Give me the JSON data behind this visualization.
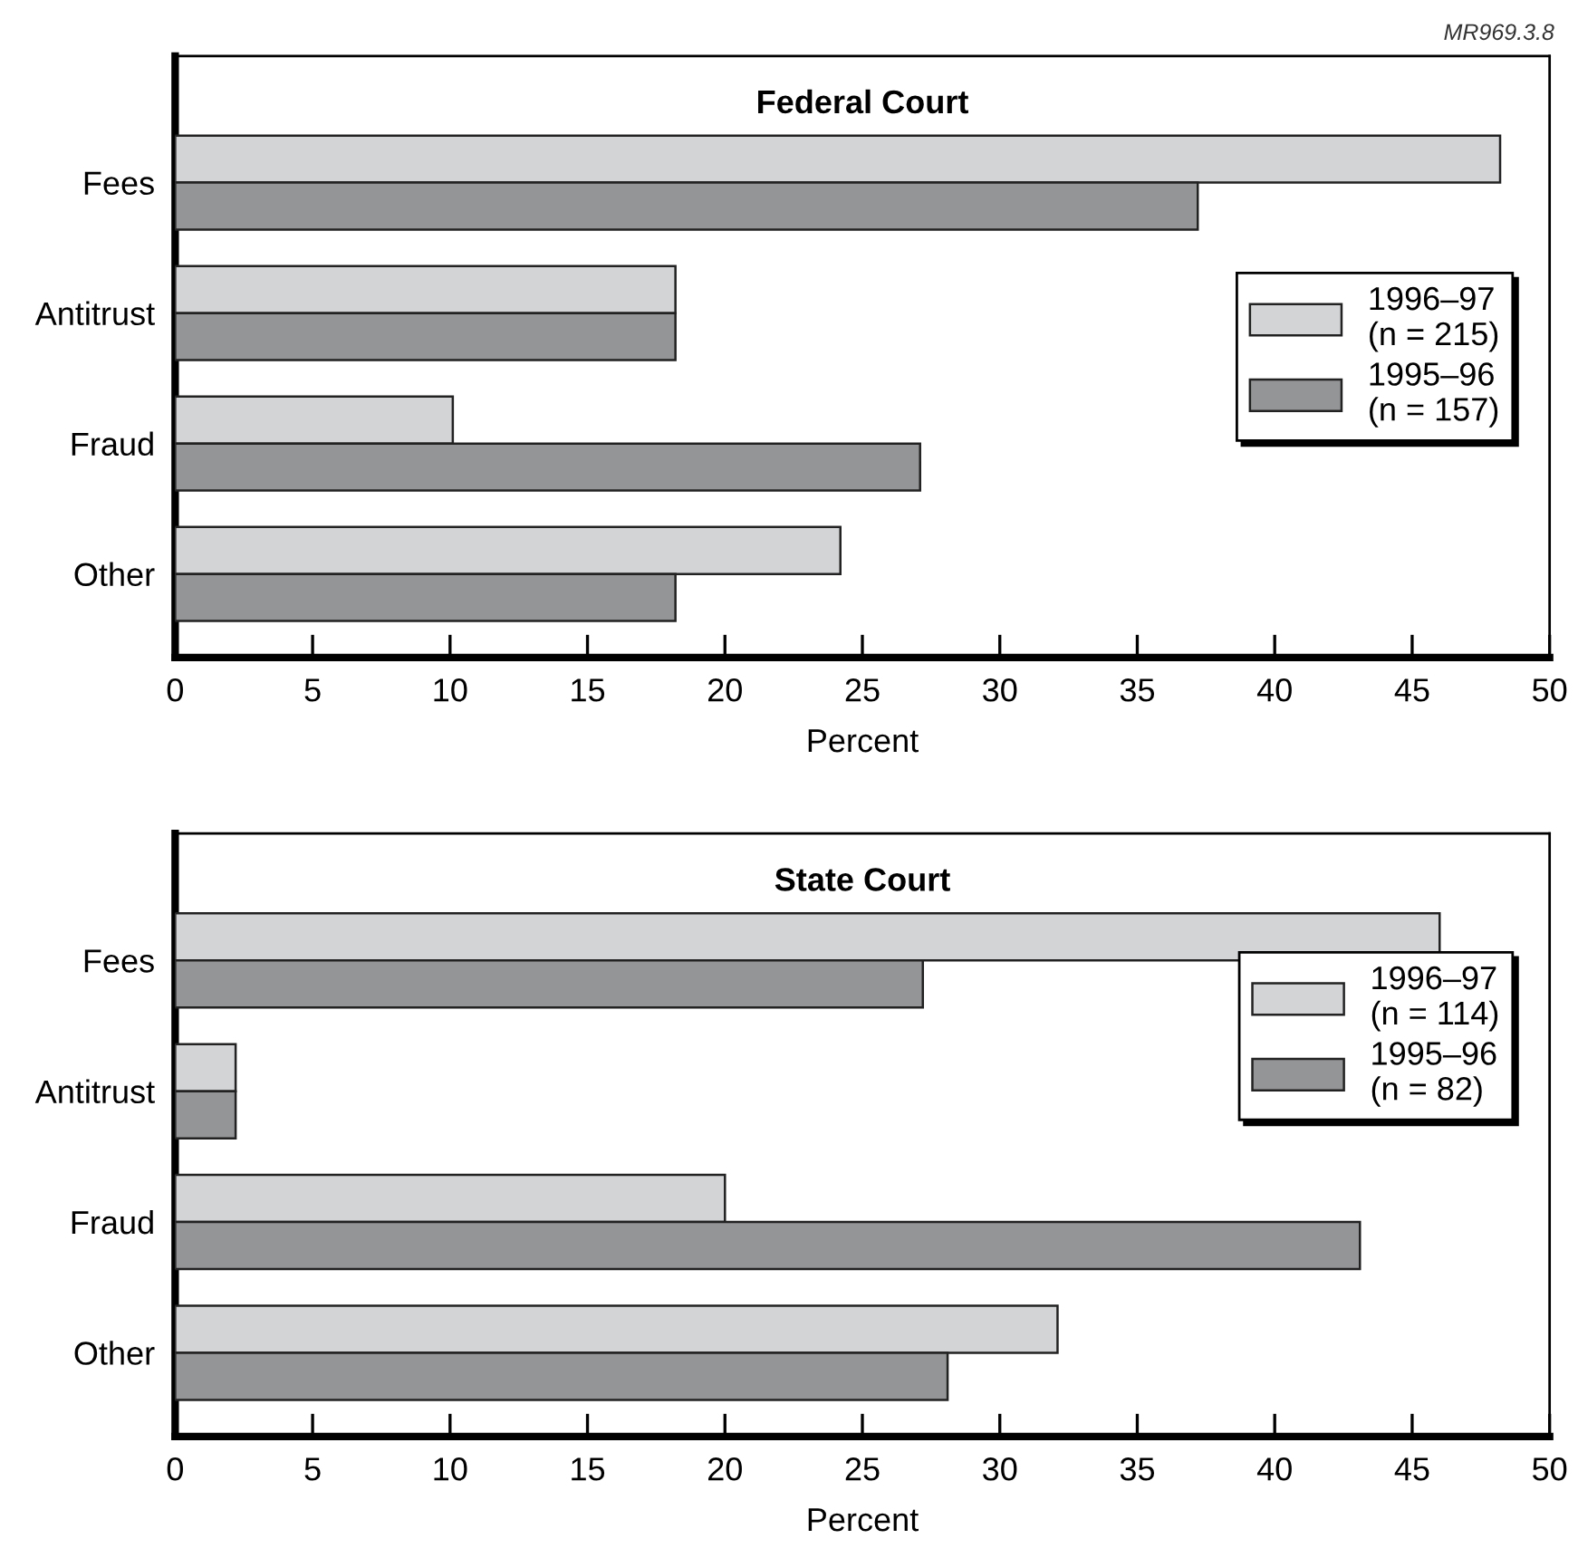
{
  "chart_data": [
    {
      "type": "bar",
      "orientation": "horizontal",
      "title": "Federal Court",
      "xlabel": "Percent",
      "categories": [
        "Fees",
        "Antitrust",
        "Fraud",
        "Other"
      ],
      "series": [
        {
          "name": "1996–97\n(n = 215)",
          "color": "#d3d4d6",
          "values": [
            48.2,
            18.2,
            10.1,
            24.2
          ]
        },
        {
          "name": "1995–96\n(n = 157)",
          "color": "#949597",
          "values": [
            37.2,
            18.2,
            27.1,
            18.2
          ]
        }
      ],
      "xlim": [
        0,
        50
      ],
      "xticks": [
        0,
        5,
        10,
        15,
        20,
        25,
        30,
        35,
        40,
        45,
        50
      ],
      "grid": false,
      "legend": "right",
      "annotations": [
        "MR969.3.8"
      ]
    },
    {
      "type": "bar",
      "orientation": "horizontal",
      "title": "State Court",
      "xlabel": "Percent",
      "categories": [
        "Fees",
        "Antitrust",
        "Fraud",
        "Other"
      ],
      "series": [
        {
          "name": "1996–97\n(n = 114)",
          "color": "#d3d4d6",
          "values": [
            46.0,
            2.2,
            20.0,
            32.1
          ]
        },
        {
          "name": "1995–96\n(n = 82)",
          "color": "#949597",
          "values": [
            27.2,
            2.2,
            43.1,
            28.1
          ]
        }
      ],
      "xlim": [
        0,
        50
      ],
      "xticks": [
        0,
        5,
        10,
        15,
        20,
        25,
        30,
        35,
        40,
        45,
        50
      ],
      "grid": false,
      "legend": "top right"
    }
  ]
}
